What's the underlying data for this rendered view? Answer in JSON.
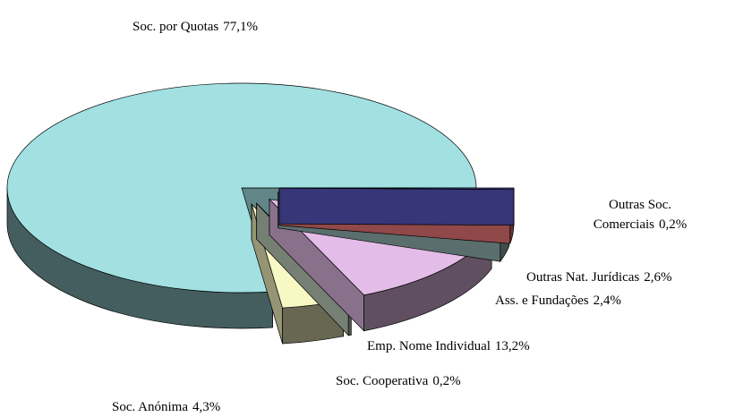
{
  "chart_data": {
    "type": "pie",
    "categories": [
      "Outras Soc. Comerciais",
      "Outras Nat. Jurídicas",
      "Ass. e Fundações",
      "Emp. Nome Individual",
      "Soc. Cooperativa",
      "Soc. Anónima",
      "Soc. por Quotas"
    ],
    "values": [
      0.2,
      2.6,
      2.4,
      13.2,
      0.2,
      4.3,
      77.1
    ],
    "value_labels": [
      "0,2%",
      "2,6%",
      "2,4%",
      "13,2%",
      "0,2%",
      "4,3%",
      "77,1%"
    ],
    "colors": [
      "#5a5ac8",
      "#f07878",
      "#98b8b8",
      "#e4bce8",
      "#c4d4c0",
      "#f8f8c4",
      "#a2e0e2"
    ],
    "exploded": true,
    "three_d": true
  }
}
